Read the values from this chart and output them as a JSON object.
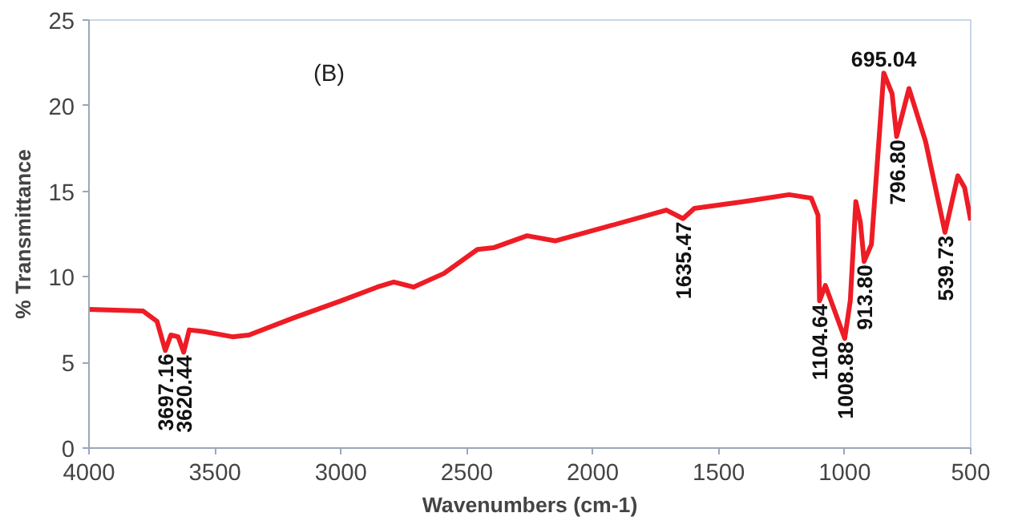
{
  "chart_data": {
    "type": "line",
    "xlabel": "Wavenumbers (cm-1)",
    "ylabel": "% Transmittance",
    "xlim": [
      4000,
      500
    ],
    "ylim": [
      0,
      25
    ],
    "xticks": [
      4000,
      3500,
      3000,
      2500,
      2000,
      1500,
      1000,
      500
    ],
    "yticks": [
      0,
      5,
      10,
      15,
      20,
      25
    ],
    "grid": false,
    "marker": "none",
    "line_style": "solid",
    "series": [
      {
        "color": "#ee1c25",
        "x": [
          4000,
          3785,
          3730,
          3697,
          3675,
          3646,
          3624,
          3602,
          3542,
          3431,
          3365,
          3188,
          3000,
          2856,
          2790,
          2712,
          2591,
          2458,
          2394,
          2261,
          2150,
          1951,
          1708,
          1642,
          1597,
          1400,
          1221,
          1133,
          1106,
          1100,
          1077,
          1000,
          978,
          956,
          938,
          923,
          894,
          845,
          812,
          794,
          745,
          679,
          602,
          551,
          524,
          500
        ],
        "values": [
          8.1,
          8.0,
          7.4,
          5.7,
          6.6,
          6.5,
          5.6,
          6.9,
          6.8,
          6.5,
          6.6,
          7.6,
          8.6,
          9.4,
          9.7,
          9.4,
          10.2,
          11.6,
          11.7,
          12.4,
          12.1,
          12.9,
          13.9,
          13.4,
          14.0,
          14.4,
          14.8,
          14.6,
          13.6,
          8.6,
          9.5,
          6.4,
          8.6,
          14.4,
          13.2,
          10.9,
          11.9,
          21.9,
          20.7,
          18.2,
          21.0,
          17.9,
          12.6,
          15.9,
          15.2,
          13.3
        ]
      }
    ],
    "annotations": [
      "(B)",
      {
        "text": "3697.16",
        "x": 3697,
        "y": 5.7
      },
      {
        "text": "3620.44",
        "x": 3624,
        "y": 5.6
      },
      {
        "text": "1635.47",
        "x": 1642,
        "y": 13.4
      },
      {
        "text": "1104.64",
        "x": 1100,
        "y": 8.6
      },
      {
        "text": "1008.88",
        "x": 1000,
        "y": 6.4
      },
      {
        "text": "913.80",
        "x": 923,
        "y": 10.9
      },
      {
        "text": "796.80",
        "x": 794,
        "y": 18.2
      },
      {
        "text": "695.04",
        "x": 845,
        "y": 21.9
      },
      {
        "text": "539.73",
        "x": 602,
        "y": 12.6
      }
    ]
  }
}
